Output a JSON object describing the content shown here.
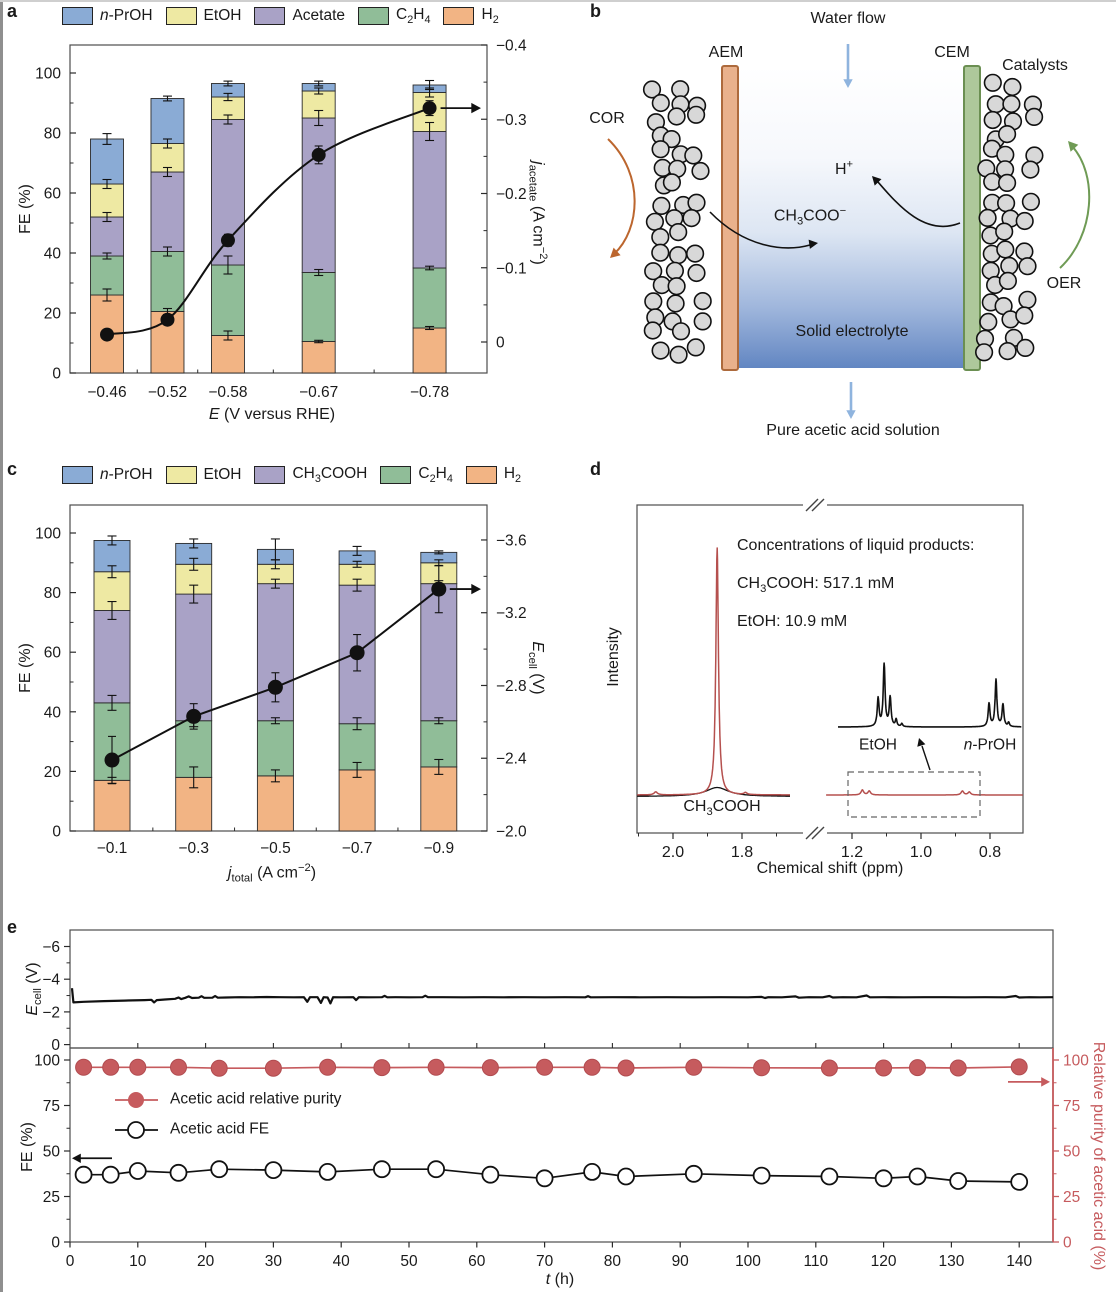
{
  "window": {
    "edge_left_color": "#8f8f8f",
    "edge_top_color": "#cfcfcf",
    "background": "#ffffff"
  },
  "colors": {
    "nproh": "#8aabd5",
    "etoh": "#eee9a3",
    "acetate": "#a9a2c6",
    "c2h4": "#90bd98",
    "h2": "#f2b484",
    "black_line": "#111111",
    "frame": "#4d4d4d",
    "red": "#c65b5e",
    "nmr_red": "#b5504e",
    "aem_fill": "#e9b18c",
    "aem_border": "#ad6a3c",
    "cem_fill": "#aec89b",
    "cem_border": "#6b8f52",
    "catalyst_fill": "#d8d8d8",
    "blue_arrow": "#8fb4de",
    "orange_arrow": "#bc662e",
    "green_arrow": "#6f9b55",
    "electrolyte_bottom": "#6286c2"
  },
  "panels": {
    "a": {
      "label": "a"
    },
    "b": {
      "label": "b",
      "water_flow": "Water flow",
      "aem": "AEM",
      "cem": "CEM",
      "catalysts": "Catalysts",
      "cor": "COR",
      "oer": "OER",
      "h_plus": [
        {
          "t": "H"
        },
        {
          "t": "+",
          "s": 1
        }
      ],
      "acetate_ion": [
        {
          "t": "CH"
        },
        {
          "t": "3",
          "s": -1
        },
        {
          "t": "COO"
        },
        {
          "t": "−",
          "s": 1
        }
      ],
      "solid_electrolyte": "Solid electrolyte",
      "pure_solution": "Pure acetic acid solution"
    },
    "c": {
      "label": "c"
    },
    "d": {
      "label": "d",
      "intensity": "Intensity",
      "xlabel": "Chemical shift (ppm)",
      "conc_title": "Concentrations of liquid products:",
      "conc_ch3cooh": [
        {
          "t": "CH"
        },
        {
          "t": "3",
          "s": -1
        },
        {
          "t": "COOH: 517.1 mM"
        }
      ],
      "conc_etoh": "EtOH: 10.9 mM",
      "peak_label": [
        {
          "t": "CH"
        },
        {
          "t": "3",
          "s": -1
        },
        {
          "t": "COOH"
        }
      ],
      "inset_etoh": "EtOH",
      "inset_nproh": [
        {
          "t": "n",
          "i": true
        },
        {
          "t": "-PrOH"
        }
      ]
    },
    "e": {
      "label": "e",
      "fe_label": "FE (%)",
      "ecell_label": [
        {
          "t": "E",
          "i": true
        },
        {
          "t": "cell",
          "s": -1
        },
        {
          "t": " (V)"
        }
      ],
      "xlabel": [
        {
          "t": "t",
          "i": true
        },
        {
          "t": " (h)"
        }
      ],
      "purity_label": "Relative purity of acetic acid (%)",
      "legend": [
        {
          "label": "Acetic acid relative purity"
        },
        {
          "label": "Acetic acid FE"
        }
      ]
    }
  },
  "chart_data": [
    {
      "id": "a",
      "type": "bar",
      "y_label": "FE (%)",
      "x_label_parts": [
        {
          "t": "E",
          "i": true
        },
        {
          "t": " (V versus RHE)"
        }
      ],
      "y2_label_parts": [
        {
          "t": "j",
          "i": true
        },
        {
          "t": "acetate",
          "s": -1
        },
        {
          "t": " (A cm"
        },
        {
          "t": "−2",
          "s": 1
        },
        {
          "t": ")"
        }
      ],
      "categories": [
        -0.46,
        -0.52,
        -0.58,
        -0.67,
        -0.78
      ],
      "cat_labels": [
        "−0.46",
        "−0.52",
        "−0.58",
        "−0.67",
        "−0.78"
      ],
      "y_ticks": [
        0,
        20,
        40,
        60,
        80,
        100
      ],
      "y_tick_labels": [
        "0",
        "20",
        "40",
        "60",
        "80",
        "100"
      ],
      "ylim": [
        0,
        109
      ],
      "y2_ticks": [
        0,
        -0.1,
        -0.2,
        -0.3,
        -0.4
      ],
      "y2_tick_labels": [
        "0",
        "−0.1",
        "−0.2",
        "−0.3",
        "−0.4"
      ],
      "series": [
        {
          "key": "h2",
          "label_parts": [
            {
              "t": "H"
            },
            {
              "t": "2",
              "s": -1
            }
          ],
          "values": [
            26,
            20.5,
            12.5,
            10.5,
            15
          ],
          "err": [
            2,
            1,
            1.5,
            0.4,
            0.5
          ]
        },
        {
          "key": "c2h4",
          "label_parts": [
            {
              "t": "C"
            },
            {
              "t": "2",
              "s": -1
            },
            {
              "t": "H"
            },
            {
              "t": "4",
              "s": -1
            }
          ],
          "values": [
            13,
            20,
            23.5,
            23,
            20
          ],
          "err": [
            1,
            1.5,
            3,
            1,
            0.6
          ]
        },
        {
          "key": "acetate",
          "label_parts": [
            {
              "t": "Acetate"
            }
          ],
          "values": [
            13,
            26.5,
            48.5,
            51.5,
            45.5
          ],
          "err": [
            1.5,
            1.5,
            1.5,
            2.5,
            3
          ]
        },
        {
          "key": "etoh",
          "label_parts": [
            {
              "t": "EtOH"
            }
          ],
          "values": [
            11,
            9.5,
            7.5,
            9,
            13
          ],
          "err": [
            1.5,
            1.5,
            1.2,
            1,
            1.5
          ]
        },
        {
          "key": "nproh",
          "label_parts": [
            {
              "t": "n",
              "i": true
            },
            {
              "t": "-PrOH"
            }
          ],
          "values": [
            15,
            15,
            4.5,
            2.5,
            2.5
          ],
          "err": [
            1.8,
            0.8,
            0.8,
            0.8,
            1.5
          ]
        }
      ],
      "line_series": {
        "name": "j_acetate",
        "values": [
          -0.01,
          -0.03,
          -0.137,
          -0.252,
          -0.315
        ],
        "err": [
          0.004,
          0.004,
          0.008,
          0.012,
          0.01
        ]
      }
    },
    {
      "id": "c",
      "type": "bar",
      "y_label": "FE (%)",
      "x_label_parts": [
        {
          "t": "j",
          "i": true
        },
        {
          "t": "total",
          "s": -1
        },
        {
          "t": " (A cm"
        },
        {
          "t": "−2",
          "s": 1
        },
        {
          "t": ")"
        }
      ],
      "y2_label_parts": [
        {
          "t": "E",
          "i": true
        },
        {
          "t": "cell",
          "s": -1
        },
        {
          "t": " (V)"
        }
      ],
      "categories": [
        -0.1,
        -0.3,
        -0.5,
        -0.7,
        -0.9
      ],
      "cat_labels": [
        "−0.1",
        "−0.3",
        "−0.5",
        "−0.7",
        "−0.9"
      ],
      "y_ticks": [
        0,
        20,
        40,
        60,
        80,
        100
      ],
      "y_tick_labels": [
        "0",
        "20",
        "40",
        "60",
        "80",
        "100"
      ],
      "ylim": [
        0,
        109
      ],
      "y2_ticks": [
        -2.0,
        -2.4,
        -2.8,
        -3.2,
        -3.6
      ],
      "y2_tick_labels": [
        "−2.0",
        "−2.4",
        "−2.8",
        "−3.2",
        "−3.6"
      ],
      "series": [
        {
          "key": "h2",
          "label_parts": [
            {
              "t": "H"
            },
            {
              "t": "2",
              "s": -1
            }
          ],
          "values": [
            17,
            18,
            18.5,
            20.5,
            21.5
          ],
          "err": [
            1,
            3.5,
            2,
            2.5,
            2.5
          ]
        },
        {
          "key": "c2h4",
          "label_parts": [
            {
              "t": "C"
            },
            {
              "t": "2",
              "s": -1
            },
            {
              "t": "H"
            },
            {
              "t": "4",
              "s": -1
            }
          ],
          "values": [
            26,
            19,
            18.5,
            15.5,
            15.5
          ],
          "err": [
            2.5,
            2,
            1,
            2,
            1
          ]
        },
        {
          "key": "acetate",
          "label_parts": [
            {
              "t": "CH"
            },
            {
              "t": "3",
              "s": -1
            },
            {
              "t": "COOH"
            }
          ],
          "values": [
            31,
            42.5,
            46,
            46.5,
            46
          ],
          "err": [
            3,
            3,
            1.5,
            2,
            1
          ]
        },
        {
          "key": "etoh",
          "label_parts": [
            {
              "t": "EtOH"
            }
          ],
          "values": [
            13,
            10,
            6.5,
            7,
            7
          ],
          "err": [
            2,
            2,
            1.5,
            1,
            1
          ]
        },
        {
          "key": "nproh",
          "label_parts": [
            {
              "t": "n",
              "i": true
            },
            {
              "t": "-PrOH"
            }
          ],
          "values": [
            10.5,
            7,
            5,
            4.5,
            3.5
          ],
          "err": [
            1.5,
            1.5,
            3.5,
            1.5,
            0.5
          ]
        }
      ],
      "line_series": {
        "name": "E_cell",
        "values": [
          -2.39,
          -2.63,
          -2.79,
          -2.98,
          -3.33
        ],
        "err": [
          0.13,
          0.07,
          0.08,
          0.1,
          0.13
        ]
      }
    },
    {
      "id": "d",
      "type": "line",
      "title": "1H NMR spectrum",
      "ch3cooh_mM": 517.1,
      "etoh_mM": 10.9,
      "seg1_ticks": [
        2.0,
        1.8
      ],
      "seg1_tick_labels": [
        "2.0",
        "1.8"
      ],
      "seg1_minor": [
        2.1,
        1.9,
        1.7
      ],
      "seg2_ticks": [
        1.2,
        1.0,
        0.8
      ],
      "seg2_tick_labels": [
        "1.2",
        "1.0",
        "0.8"
      ],
      "seg2_minor": [
        1.1,
        0.9
      ],
      "main_red_peaks": [
        [
          1.872,
          247,
          0.0045
        ],
        [
          2.05,
          3,
          0.006
        ],
        [
          1.79,
          2,
          0.005
        ]
      ],
      "main_black_peaks": [
        [
          1.872,
          9,
          0.04
        ]
      ],
      "right_red_peaks": [
        [
          1.17,
          5,
          0.0045
        ],
        [
          1.15,
          4,
          0.0045
        ],
        [
          0.88,
          4,
          0.0045
        ],
        [
          0.86,
          3,
          0.0045
        ]
      ],
      "inset_peaks": [
        [
          1.153,
          28,
          0.0035
        ],
        [
          1.134,
          62,
          0.0035
        ],
        [
          1.115,
          29,
          0.0035
        ],
        [
          1.096,
          7,
          0.003
        ],
        [
          1.078,
          3,
          0.003
        ],
        [
          0.802,
          23,
          0.0035
        ],
        [
          0.78,
          47,
          0.0035
        ],
        [
          0.758,
          22,
          0.0035
        ],
        [
          0.74,
          4,
          0.003
        ]
      ]
    },
    {
      "id": "e",
      "type": "line",
      "top": {
        "y_ticks": [
          0,
          -2,
          -4,
          -6
        ],
        "y_tick_labels": [
          "0",
          "−2",
          "−4",
          "−6"
        ],
        "trace": [
          [
            0.3,
            -3.45
          ],
          [
            0.5,
            -2.58
          ],
          [
            2,
            -2.62
          ],
          [
            5,
            -2.66
          ],
          [
            8,
            -2.69
          ],
          [
            11,
            -2.72
          ],
          [
            12,
            -2.74
          ],
          [
            12.4,
            -2.58
          ],
          [
            12.8,
            -2.72
          ],
          [
            14,
            -2.76
          ],
          [
            15.5,
            -2.8
          ],
          [
            16,
            -2.88
          ],
          [
            16.4,
            -2.78
          ],
          [
            17,
            -2.86
          ],
          [
            17.5,
            -2.95
          ],
          [
            18,
            -2.85
          ],
          [
            19,
            -2.87
          ],
          [
            19.4,
            -2.96
          ],
          [
            19.8,
            -2.86
          ],
          [
            21,
            -2.87
          ],
          [
            21.4,
            -2.97
          ],
          [
            21.8,
            -2.87
          ],
          [
            23,
            -2.88
          ],
          [
            25,
            -2.9
          ],
          [
            27,
            -2.89
          ],
          [
            29,
            -2.91
          ],
          [
            31,
            -2.9
          ],
          [
            33,
            -2.89
          ],
          [
            34.5,
            -2.9
          ],
          [
            35,
            -2.62
          ],
          [
            35.4,
            -2.9
          ],
          [
            36.5,
            -2.9
          ],
          [
            37,
            -2.55
          ],
          [
            37.4,
            -2.9
          ],
          [
            38,
            -2.88
          ],
          [
            38.4,
            -2.52
          ],
          [
            38.8,
            -2.9
          ],
          [
            40,
            -2.89
          ],
          [
            41.8,
            -2.9
          ],
          [
            42.2,
            -2.72
          ],
          [
            42.6,
            -2.9
          ],
          [
            44,
            -2.89
          ],
          [
            46,
            -2.9
          ],
          [
            46.4,
            -2.98
          ],
          [
            46.8,
            -2.89
          ],
          [
            48,
            -2.9
          ],
          [
            50,
            -2.89
          ],
          [
            52,
            -2.9
          ],
          [
            52.4,
            -2.99
          ],
          [
            52.8,
            -2.9
          ],
          [
            55,
            -2.9
          ],
          [
            58,
            -2.89
          ],
          [
            61,
            -2.9
          ],
          [
            64,
            -2.89
          ],
          [
            67,
            -2.9
          ],
          [
            70,
            -2.89
          ],
          [
            73,
            -2.9
          ],
          [
            76,
            -2.89
          ],
          [
            76.4,
            -2.96
          ],
          [
            76.8,
            -2.89
          ],
          [
            80,
            -2.9
          ],
          [
            84,
            -2.89
          ],
          [
            88,
            -2.9
          ],
          [
            92,
            -2.89
          ],
          [
            96,
            -2.9
          ],
          [
            100,
            -2.89
          ],
          [
            102,
            -2.92
          ],
          [
            102.5,
            -2.85
          ],
          [
            103,
            -2.9
          ],
          [
            105,
            -2.89
          ],
          [
            107,
            -2.95
          ],
          [
            107.5,
            -2.87
          ],
          [
            109,
            -2.9
          ],
          [
            111,
            -2.89
          ],
          [
            112,
            -2.97
          ],
          [
            112.5,
            -2.88
          ],
          [
            114,
            -2.9
          ],
          [
            116,
            -2.89
          ],
          [
            117.5,
            -3.0
          ],
          [
            118,
            -2.89
          ],
          [
            120,
            -2.9
          ],
          [
            123,
            -2.89
          ],
          [
            126,
            -2.9
          ],
          [
            129,
            -2.9
          ],
          [
            132,
            -2.89
          ],
          [
            135,
            -2.9
          ],
          [
            138,
            -2.89
          ],
          [
            139.5,
            -2.97
          ],
          [
            140,
            -2.88
          ],
          [
            141.5,
            -2.9
          ],
          [
            143,
            -2.89
          ],
          [
            145,
            -2.9
          ]
        ]
      },
      "bottom": {
        "y_ticks": [
          0,
          25,
          50,
          75,
          100
        ],
        "y_tick_labels": [
          "0",
          "25",
          "50",
          "75",
          "100"
        ],
        "x_ticks": [
          0,
          10,
          20,
          30,
          40,
          50,
          60,
          70,
          80,
          90,
          100,
          110,
          120,
          130,
          140
        ],
        "x_tick_labels": [
          "0",
          "10",
          "20",
          "30",
          "40",
          "50",
          "60",
          "70",
          "80",
          "90",
          "100",
          "110",
          "120",
          "130",
          "140"
        ],
        "y2_ticks": [
          0,
          25,
          50,
          75,
          100
        ],
        "y2_tick_labels": [
          "0",
          "25",
          "50",
          "75",
          "100"
        ],
        "t": [
          2,
          6,
          10,
          16,
          22,
          30,
          38,
          46,
          54,
          62,
          70,
          77,
          82,
          92,
          102,
          112,
          120,
          125,
          131,
          140
        ],
        "purity": [
          96,
          96,
          96,
          96,
          95.5,
          95.5,
          96,
          95.8,
          96,
          95.8,
          96,
          96,
          95.6,
          96,
          95.7,
          95.6,
          95.6,
          95.8,
          95.6,
          96.2
        ],
        "fe": [
          37,
          37,
          39,
          38,
          40,
          39.5,
          38.5,
          40,
          40,
          37,
          35,
          38.5,
          36,
          37.5,
          36.5,
          36,
          35,
          36,
          33.5,
          33
        ],
        "fe_arrow_y": 46,
        "purity_arrow_y": 88
      }
    }
  ]
}
